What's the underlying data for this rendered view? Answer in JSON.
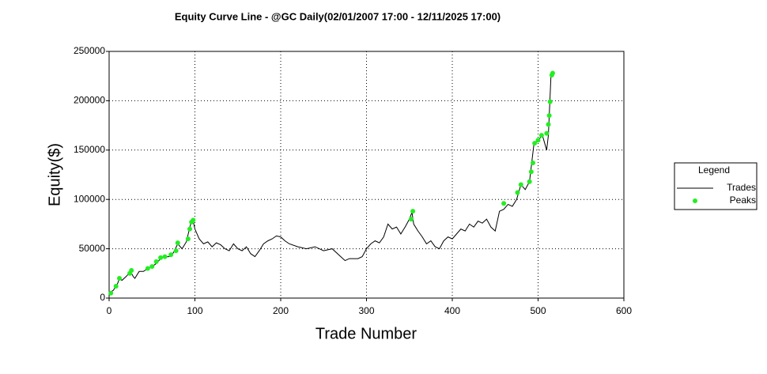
{
  "chart_data": {
    "type": "line",
    "title": "Equity Curve Line - @GC Daily(02/01/2007 17:00 - 12/11/2025 17:00)",
    "x_label": "Trade Number",
    "y_label": "Equity($)",
    "xlim": [
      0,
      600
    ],
    "xticks": [
      0,
      100,
      200,
      300,
      400,
      500,
      600
    ],
    "ylim": [
      0,
      250000
    ],
    "yticks": [
      0,
      50000,
      100000,
      150000,
      200000,
      250000
    ],
    "grid": true,
    "legend_title": "Legend",
    "legend": "right",
    "series": [
      {
        "name": "Trades",
        "color": "#000000",
        "kind": "line",
        "x": [
          0,
          5,
          10,
          12,
          15,
          20,
          25,
          28,
          30,
          35,
          40,
          45,
          50,
          55,
          60,
          65,
          70,
          75,
          80,
          85,
          90,
          95,
          98,
          100,
          105,
          110,
          115,
          120,
          125,
          130,
          135,
          140,
          145,
          150,
          155,
          160,
          165,
          170,
          175,
          180,
          185,
          190,
          195,
          200,
          205,
          210,
          220,
          230,
          240,
          250,
          260,
          270,
          275,
          280,
          290,
          295,
          300,
          305,
          310,
          315,
          320,
          325,
          330,
          335,
          340,
          345,
          350,
          353,
          355,
          360,
          365,
          370,
          375,
          380,
          385,
          390,
          395,
          400,
          405,
          410,
          415,
          420,
          425,
          430,
          435,
          440,
          445,
          450,
          455,
          460,
          465,
          470,
          475,
          480,
          485,
          490,
          495,
          500,
          505,
          510,
          512,
          515,
          518
        ],
        "values": [
          5000,
          8000,
          15000,
          20000,
          18000,
          22000,
          27000,
          22000,
          20000,
          27000,
          27000,
          30000,
          32000,
          35000,
          40000,
          42000,
          42000,
          46000,
          55000,
          50000,
          57000,
          75000,
          78000,
          70000,
          60000,
          55000,
          57000,
          52000,
          56000,
          54000,
          50000,
          48000,
          55000,
          50000,
          48000,
          52000,
          45000,
          42000,
          48000,
          55000,
          58000,
          60000,
          63000,
          62000,
          58000,
          55000,
          52000,
          50000,
          52000,
          48000,
          50000,
          42000,
          38000,
          40000,
          40000,
          42000,
          50000,
          55000,
          58000,
          56000,
          62000,
          75000,
          70000,
          72000,
          65000,
          72000,
          80000,
          87000,
          75000,
          68000,
          62000,
          55000,
          58000,
          52000,
          50000,
          58000,
          62000,
          60000,
          65000,
          70000,
          68000,
          75000,
          72000,
          78000,
          76000,
          80000,
          72000,
          68000,
          88000,
          90000,
          95000,
          93000,
          100000,
          115000,
          110000,
          118000,
          155000,
          160000,
          165000,
          150000,
          165000,
          225000,
          230000
        ]
      },
      {
        "name": "Peaks",
        "color": "#22ee22",
        "kind": "scatter",
        "x": [
          2,
          8,
          12,
          24,
          26,
          45,
          50,
          55,
          60,
          65,
          72,
          78,
          80,
          92,
          94,
          96,
          98,
          352,
          354,
          460,
          476,
          480,
          490,
          492,
          494,
          496,
          500,
          504,
          510,
          512,
          513,
          514,
          516,
          517
        ],
        "values": [
          5000,
          12000,
          20000,
          25000,
          28000,
          30000,
          32000,
          37000,
          41000,
          42000,
          44000,
          48000,
          56000,
          60000,
          70000,
          77000,
          79000,
          80000,
          88000,
          96000,
          107000,
          115000,
          118000,
          128000,
          137000,
          157000,
          160000,
          165000,
          167000,
          176000,
          185000,
          199000,
          226000,
          228000
        ]
      }
    ]
  }
}
